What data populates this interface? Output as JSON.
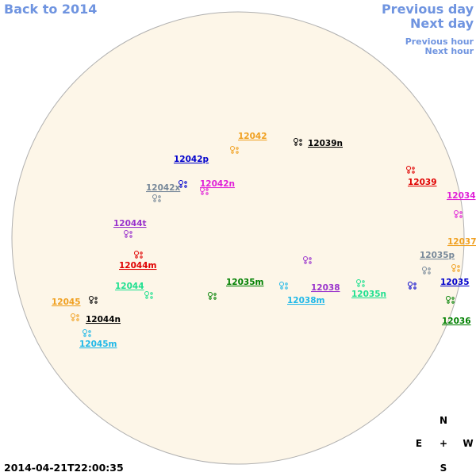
{
  "navigation": {
    "back": "Back to 2014",
    "previous_day": "Previous day",
    "next_day": "Next day",
    "previous_hour": "Previous hour",
    "next_hour": "Next hour"
  },
  "regions": [
    {
      "label": "12042",
      "color": "#f0a020"
    },
    {
      "label": "12039n",
      "color": "#000000"
    },
    {
      "label": "12042p",
      "color": "#0000cc"
    },
    {
      "label": "12039",
      "color": "#e00000"
    },
    {
      "label": "12042x",
      "color": "#778899"
    },
    {
      "label": "12042n",
      "color": "#e020d8"
    },
    {
      "label": "12034",
      "color": "#e020d8"
    },
    {
      "label": "12044t",
      "color": "#9932cc"
    },
    {
      "label": "12037",
      "color": "#f0a020"
    },
    {
      "label": "12035p",
      "color": "#778899"
    },
    {
      "label": "12044m",
      "color": "#e00000"
    },
    {
      "label": "12035m",
      "color": "#008000"
    },
    {
      "label": "12044",
      "color": "#20e090"
    },
    {
      "label": "12038",
      "color": "#9932cc"
    },
    {
      "label": "12035",
      "color": "#0000cc"
    },
    {
      "label": "12045",
      "color": "#f0a020"
    },
    {
      "label": "12038m",
      "color": "#20b8e8"
    },
    {
      "label": "12035n",
      "color": "#20e090"
    },
    {
      "label": "12044n",
      "color": "#000000"
    },
    {
      "label": "12036",
      "color": "#008000"
    },
    {
      "label": "12045m",
      "color": "#20b8e8"
    }
  ],
  "timestamp": "2014-04-21T22:00:35",
  "compass": {
    "north": "N",
    "east": "E",
    "center": "+",
    "west": "W",
    "south": "S"
  }
}
